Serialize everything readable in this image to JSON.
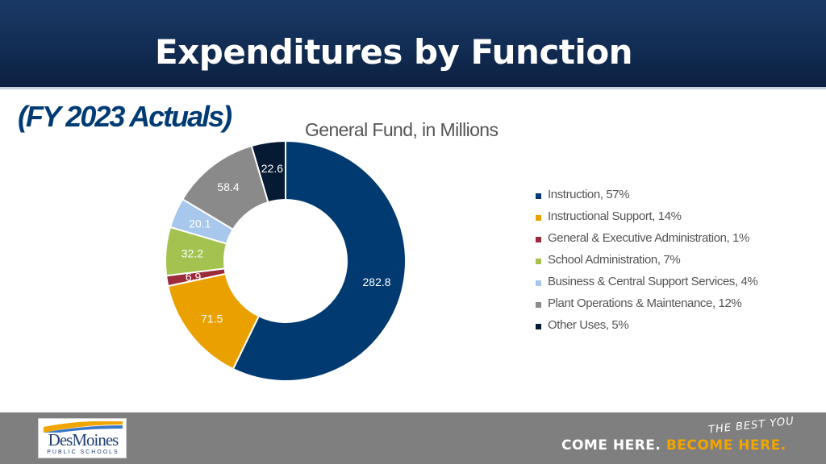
{
  "header": {
    "title": "Expenditures by Function"
  },
  "subtitle": "(FY 2023 Actuals)",
  "chart_data": {
    "type": "pie",
    "title": "General Fund, in Millions",
    "donut": true,
    "legend_position": "right",
    "slices": [
      {
        "label": "282.8",
        "value": 282.8,
        "legend": "Instruction, 57%",
        "color": "#003a70",
        "label_color": "#ffffff"
      },
      {
        "label": "71.5",
        "value": 71.5,
        "legend": "Instructional Support, 14%",
        "color": "#eaa100",
        "label_color": "#ffffff"
      },
      {
        "label": "6.9",
        "value": 6.9,
        "legend": "General & Executive Administration, 1%",
        "color": "#9b2a3a",
        "label_color": "#ffffff"
      },
      {
        "label": "32.2",
        "value": 32.2,
        "legend": "School Administration, 7%",
        "color": "#a3c24f",
        "label_color": "#ffffff"
      },
      {
        "label": "20.1",
        "value": 20.1,
        "legend": "Business & Central Support Services, 4%",
        "color": "#a7c8ec",
        "label_color": "#ffffff"
      },
      {
        "label": "58.4",
        "value": 58.4,
        "legend": "Plant Operations & Maintenance, 12%",
        "color": "#8a8a8a",
        "label_color": "#ffffff"
      },
      {
        "label": "22.6",
        "value": 22.6,
        "legend": "Other Uses, 5%",
        "color": "#061a33",
        "label_color": "#ffffff"
      }
    ]
  },
  "footer": {
    "logo_main": "DesMoines",
    "logo_sub": "PUBLIC SCHOOLS",
    "tag_script": "THE BEST YOU",
    "tag_white": "COME HERE.",
    "tag_gold_1": "BECOME",
    "tag_gold_2": "HERE.",
    "logo_colors": {
      "navy": "#1f3f74",
      "gold": "#f0a500",
      "blue": "#3a78c8"
    }
  }
}
